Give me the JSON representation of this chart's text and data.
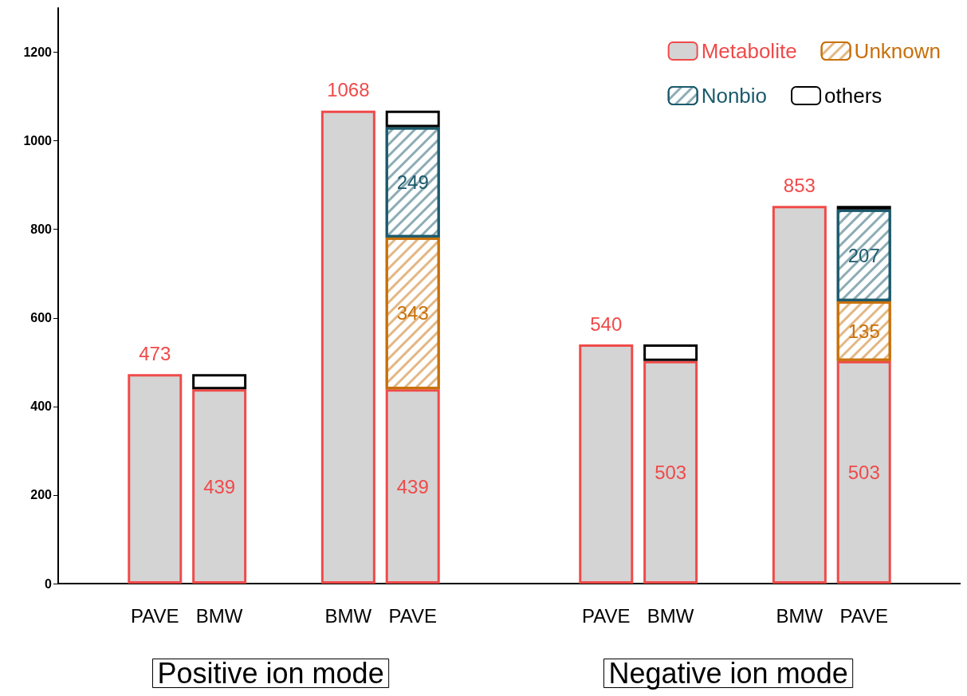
{
  "chart_data": {
    "type": "bar",
    "stacked": true,
    "categories": [
      "PAVE",
      "BMW",
      "BMW",
      "PAVE",
      "PAVE",
      "BMW",
      "BMW",
      "PAVE"
    ],
    "series": [
      {
        "name": "Metabolite",
        "color": "#f04a4a",
        "values": [
          473,
          439,
          1068,
          439,
          540,
          503,
          853,
          503
        ],
        "value_labels": [
          "473",
          "439",
          "1068",
          "439",
          "540",
          "503",
          "853",
          "503"
        ]
      },
      {
        "name": "Unknown",
        "color": "#c8700a",
        "values": [
          null,
          null,
          null,
          343,
          null,
          null,
          null,
          135
        ],
        "value_labels": [
          null,
          null,
          null,
          "343",
          null,
          null,
          null,
          "135"
        ]
      },
      {
        "name": "Nonbio",
        "color": "#1b5a6b",
        "values": [
          null,
          null,
          null,
          249,
          null,
          null,
          null,
          207
        ],
        "value_labels": [
          null,
          null,
          null,
          "249",
          null,
          null,
          null,
          "207"
        ]
      },
      {
        "name": "others",
        "color": "#000000",
        "values": [
          null,
          34,
          null,
          37,
          null,
          37,
          null,
          8
        ]
      }
    ],
    "ylim": [
      0,
      1300
    ],
    "yticks": [
      0,
      200,
      400,
      600,
      800,
      1000,
      1200
    ],
    "grid": false,
    "legend": "top right",
    "annotations": [
      "Positive ion mode",
      "Negative ion mode"
    ]
  }
}
